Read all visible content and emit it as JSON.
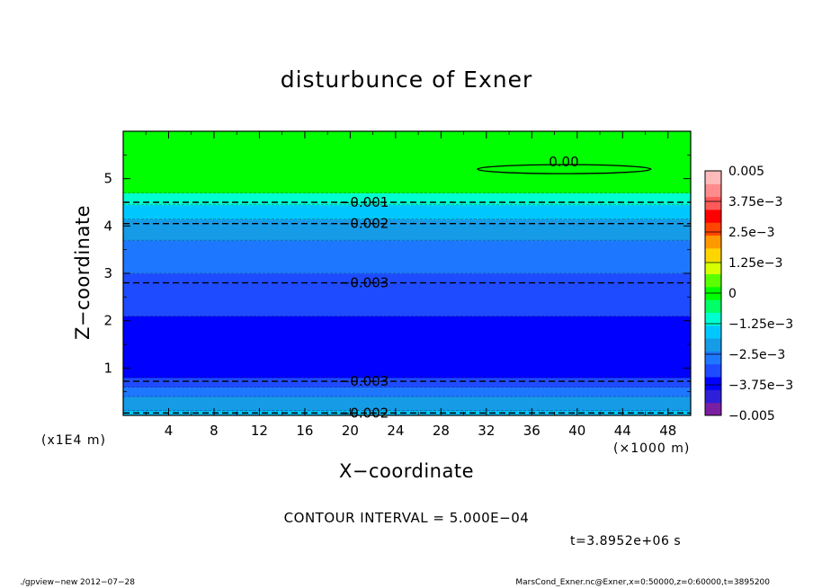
{
  "chart_data": {
    "type": "heatmap",
    "title": "disturbunce of Exner",
    "xlabel": "X−coordinate",
    "ylabel": "Z−coordinate",
    "x_unit_label": "(×1000 m)",
    "y_unit_label": "(x1E4 m)",
    "xlim": [
      0,
      50
    ],
    "ylim": [
      0,
      6
    ],
    "x_ticks": [
      "4",
      "8",
      "12",
      "16",
      "20",
      "24",
      "28",
      "32",
      "36",
      "40",
      "44",
      "48"
    ],
    "y_ticks": [
      "1",
      "2",
      "3",
      "4",
      "5"
    ],
    "colorbar": {
      "range": [
        -0.005,
        0.005
      ],
      "tick_labels": [
        "0.005",
        "3.75e−3",
        "2.5e−3",
        "1.25e−3",
        "0",
        "−1.25e−3",
        "−2.5e−3",
        "−3.75e−3",
        "−0.005"
      ],
      "colors": [
        "#7b1fa2",
        "#2e1fd9",
        "#0000ff",
        "#1e4bff",
        "#1e78ff",
        "#169be6",
        "#00c8ff",
        "#00ffd0",
        "#00ff66",
        "#00ff00",
        "#5bff00",
        "#d8ff00",
        "#ffd500",
        "#ff9900",
        "#ff4500",
        "#ff0000",
        "#ff5a5a",
        "#ff8c8c",
        "#ffbaba"
      ]
    },
    "bands": [
      {
        "z_from": 0.0,
        "z_to": 0.1,
        "color": "#00c8ff"
      },
      {
        "z_from": 0.1,
        "z_to": 0.4,
        "color": "#169be6"
      },
      {
        "z_from": 0.4,
        "z_to": 0.6,
        "color": "#1e78ff"
      },
      {
        "z_from": 0.6,
        "z_to": 0.8,
        "color": "#1e4bff"
      },
      {
        "z_from": 0.8,
        "z_to": 2.1,
        "color": "#0000ff"
      },
      {
        "z_from": 2.1,
        "z_to": 3.0,
        "color": "#1e4bff"
      },
      {
        "z_from": 3.0,
        "z_to": 3.7,
        "color": "#1e78ff"
      },
      {
        "z_from": 3.7,
        "z_to": 4.15,
        "color": "#169be6"
      },
      {
        "z_from": 4.15,
        "z_to": 4.45,
        "color": "#00c8ff"
      },
      {
        "z_from": 4.45,
        "z_to": 4.7,
        "color": "#00ffd0"
      },
      {
        "z_from": 4.7,
        "z_to": 6.0,
        "color": "#00ff00"
      }
    ],
    "contours": [
      {
        "level": "0.00",
        "z": 5.2,
        "x_from": 31.2,
        "x_to": 46.5,
        "style": "solid"
      },
      {
        "level": "-0.001",
        "z": 4.5,
        "style": "dashed"
      },
      {
        "level": "-0.002",
        "z": 4.05,
        "style": "dashed"
      },
      {
        "level": "-0.003",
        "z": 2.8,
        "style": "dashed"
      },
      {
        "level": "-0.003",
        "z": 0.72,
        "style": "dashed"
      },
      {
        "level": "-0.002",
        "z": 0.05,
        "style": "dashed"
      }
    ],
    "contour_labels": [
      {
        "text": "0.00",
        "x": 37.5,
        "z": 5.35
      },
      {
        "text": "−0.001",
        "x": 19.0,
        "z": 4.5
      },
      {
        "text": "−0.002",
        "x": 19.0,
        "z": 4.05
      },
      {
        "text": "−0.003",
        "x": 19.0,
        "z": 2.8
      },
      {
        "text": "−0.003",
        "x": 19.0,
        "z": 0.72
      },
      {
        "text": "−0.002",
        "x": 19.0,
        "z": 0.05
      }
    ]
  },
  "annotations": {
    "contour_interval": "CONTOUR INTERVAL = 5.000E−04",
    "time": "t=3.8952e+06 s",
    "footer_left": "./gpview−new  2012−07−28",
    "footer_right": "MarsCond_Exner.nc@Exner,x=0:50000,z=0:60000,t=3895200"
  }
}
